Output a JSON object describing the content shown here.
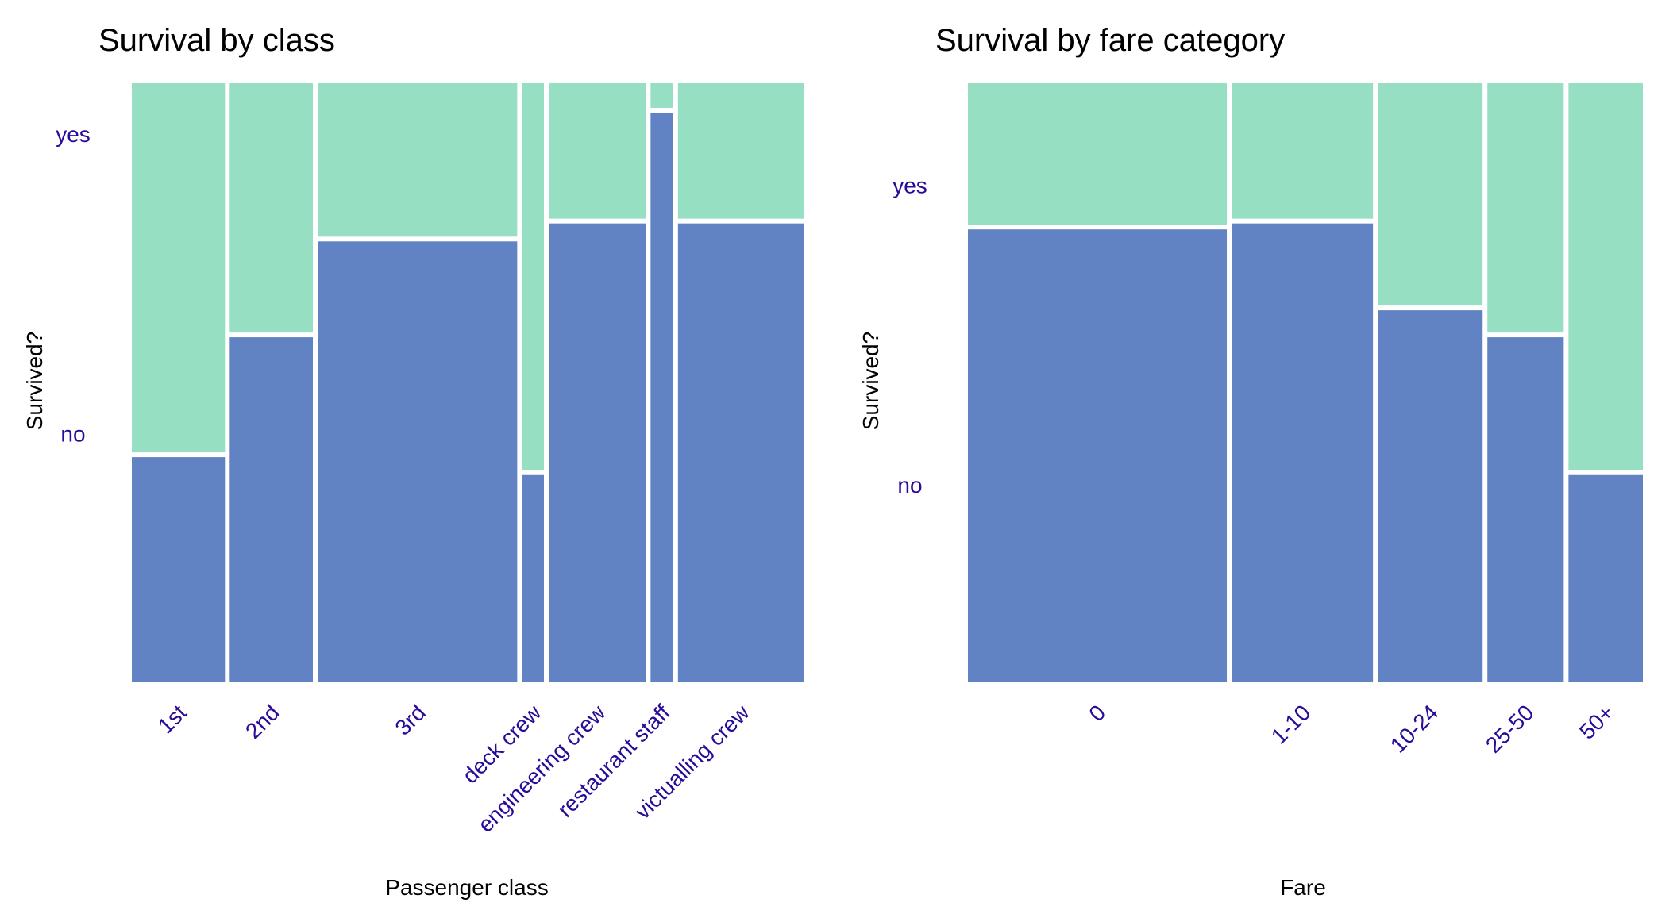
{
  "colors": {
    "no": "#6183c3",
    "yes": "#96dfc2",
    "text": "#2b0a99",
    "axis_title": "#000000",
    "separator": "#ffffff"
  },
  "chart_data": [
    {
      "type": "mosaic",
      "title": "Survival by class",
      "xlabel": "Passenger class",
      "ylabel": "Survived?",
      "levels": [
        "no",
        "yes"
      ],
      "categories": [
        "1st",
        "2nd",
        "3rd",
        "deck crew",
        "engineering crew",
        "restaurant staff",
        "victualling crew"
      ],
      "column_share": [
        0.14,
        0.125,
        0.3,
        0.033,
        0.146,
        0.034,
        0.19
      ],
      "series": [
        {
          "name": "no",
          "values": [
            0.38,
            0.58,
            0.74,
            0.35,
            0.77,
            0.955,
            0.77
          ]
        },
        {
          "name": "yes",
          "values": [
            0.62,
            0.42,
            0.26,
            0.65,
            0.23,
            0.045,
            0.23
          ]
        }
      ],
      "level_label_share": [
        0.83,
        0.17
      ],
      "grid": false
    },
    {
      "type": "mosaic",
      "title": "Survival by fare category",
      "xlabel": "Fare",
      "ylabel": "Survived?",
      "levels": [
        "no",
        "yes"
      ],
      "categories": [
        "0",
        "1-10",
        "10-24",
        "25-50",
        "50+"
      ],
      "column_share": [
        0.39,
        0.213,
        0.158,
        0.115,
        0.112
      ],
      "series": [
        {
          "name": "no",
          "values": [
            0.76,
            0.77,
            0.625,
            0.58,
            0.35
          ]
        },
        {
          "name": "yes",
          "values": [
            0.24,
            0.23,
            0.375,
            0.42,
            0.65
          ]
        }
      ],
      "level_label_share": [
        0.66,
        0.34
      ],
      "grid": false
    }
  ]
}
